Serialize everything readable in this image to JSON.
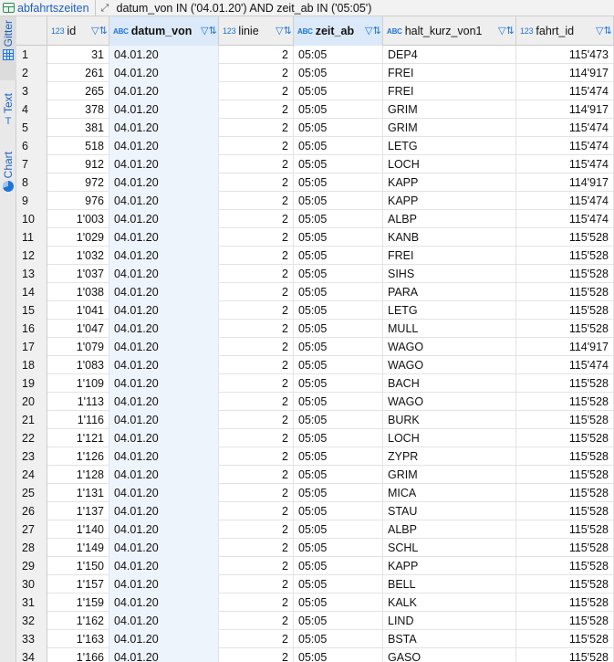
{
  "topbar": {
    "table_name": "abfahrtszeiten",
    "filter": "datum_von IN ('04.01.20') AND zeit_ab IN ('05:05')"
  },
  "sidetabs": {
    "grid_label": "Gitter",
    "text_label": "Text",
    "chart_label": "Chart"
  },
  "columns": [
    {
      "name": "id",
      "type": "123"
    },
    {
      "name": "datum_von",
      "type": "ABC"
    },
    {
      "name": "linie",
      "type": "123"
    },
    {
      "name": "zeit_ab",
      "type": "ABC"
    },
    {
      "name": "halt_kurz_von1",
      "type": "ABC"
    },
    {
      "name": "fahrt_id",
      "type": "123"
    }
  ],
  "rows": [
    [
      "1",
      "31",
      "04.01.20",
      "2",
      "05:05",
      "DEP4",
      "115'473"
    ],
    [
      "2",
      "261",
      "04.01.20",
      "2",
      "05:05",
      "FREI",
      "114'917"
    ],
    [
      "3",
      "265",
      "04.01.20",
      "2",
      "05:05",
      "FREI",
      "115'474"
    ],
    [
      "4",
      "378",
      "04.01.20",
      "2",
      "05:05",
      "GRIM",
      "114'917"
    ],
    [
      "5",
      "381",
      "04.01.20",
      "2",
      "05:05",
      "GRIM",
      "115'474"
    ],
    [
      "6",
      "518",
      "04.01.20",
      "2",
      "05:05",
      "LETG",
      "115'474"
    ],
    [
      "7",
      "912",
      "04.01.20",
      "2",
      "05:05",
      "LOCH",
      "115'474"
    ],
    [
      "8",
      "972",
      "04.01.20",
      "2",
      "05:05",
      "KAPP",
      "114'917"
    ],
    [
      "9",
      "976",
      "04.01.20",
      "2",
      "05:05",
      "KAPP",
      "115'474"
    ],
    [
      "10",
      "1'003",
      "04.01.20",
      "2",
      "05:05",
      "ALBP",
      "115'474"
    ],
    [
      "11",
      "1'029",
      "04.01.20",
      "2",
      "05:05",
      "KANB",
      "115'528"
    ],
    [
      "12",
      "1'032",
      "04.01.20",
      "2",
      "05:05",
      "FREI",
      "115'528"
    ],
    [
      "13",
      "1'037",
      "04.01.20",
      "2",
      "05:05",
      "SIHS",
      "115'528"
    ],
    [
      "14",
      "1'038",
      "04.01.20",
      "2",
      "05:05",
      "PARA",
      "115'528"
    ],
    [
      "15",
      "1'041",
      "04.01.20",
      "2",
      "05:05",
      "LETG",
      "115'528"
    ],
    [
      "16",
      "1'047",
      "04.01.20",
      "2",
      "05:05",
      "MULL",
      "115'528"
    ],
    [
      "17",
      "1'079",
      "04.01.20",
      "2",
      "05:05",
      "WAGO",
      "114'917"
    ],
    [
      "18",
      "1'083",
      "04.01.20",
      "2",
      "05:05",
      "WAGO",
      "115'474"
    ],
    [
      "19",
      "1'109",
      "04.01.20",
      "2",
      "05:05",
      "BACH",
      "115'528"
    ],
    [
      "20",
      "1'113",
      "04.01.20",
      "2",
      "05:05",
      "WAGO",
      "115'528"
    ],
    [
      "21",
      "1'116",
      "04.01.20",
      "2",
      "05:05",
      "BURK",
      "115'528"
    ],
    [
      "22",
      "1'121",
      "04.01.20",
      "2",
      "05:05",
      "LOCH",
      "115'528"
    ],
    [
      "23",
      "1'126",
      "04.01.20",
      "2",
      "05:05",
      "ZYPR",
      "115'528"
    ],
    [
      "24",
      "1'128",
      "04.01.20",
      "2",
      "05:05",
      "GRIM",
      "115'528"
    ],
    [
      "25",
      "1'131",
      "04.01.20",
      "2",
      "05:05",
      "MICA",
      "115'528"
    ],
    [
      "26",
      "1'137",
      "04.01.20",
      "2",
      "05:05",
      "STAU",
      "115'528"
    ],
    [
      "27",
      "1'140",
      "04.01.20",
      "2",
      "05:05",
      "ALBP",
      "115'528"
    ],
    [
      "28",
      "1'149",
      "04.01.20",
      "2",
      "05:05",
      "SCHL",
      "115'528"
    ],
    [
      "29",
      "1'150",
      "04.01.20",
      "2",
      "05:05",
      "KAPP",
      "115'528"
    ],
    [
      "30",
      "1'157",
      "04.01.20",
      "2",
      "05:05",
      "BELL",
      "115'528"
    ],
    [
      "31",
      "1'159",
      "04.01.20",
      "2",
      "05:05",
      "KALK",
      "115'528"
    ],
    [
      "32",
      "1'162",
      "04.01.20",
      "2",
      "05:05",
      "LIND",
      "115'528"
    ],
    [
      "33",
      "1'163",
      "04.01.20",
      "2",
      "05:05",
      "BSTA",
      "115'528"
    ],
    [
      "34",
      "1'166",
      "04.01.20",
      "2",
      "05:05",
      "GASO",
      "115'528"
    ]
  ]
}
